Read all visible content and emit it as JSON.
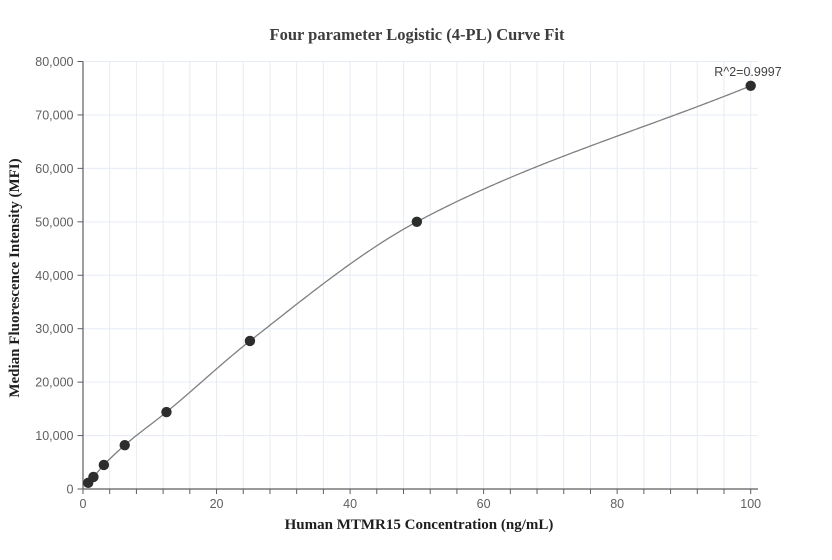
{
  "chart_data": {
    "type": "scatter",
    "title": "Four parameter Logistic (4-PL) Curve Fit",
    "xlabel": "Human MTMR15 Concentration (ng/mL)",
    "ylabel": "Median Fluorescence Intensity (MFI)",
    "annotation": "R^2=0.9997",
    "series": [
      {
        "name": "standard-curve-points",
        "x": [
          0.781,
          1.563,
          3.125,
          6.25,
          12.5,
          25,
          50,
          100
        ],
        "y": [
          1150,
          2250,
          4500,
          8200,
          14400,
          27700,
          50000,
          75450
        ]
      }
    ],
    "fit": {
      "kind": "4-PL logistic curve through points",
      "r_squared": 0.9997,
      "curve_lead_in": {
        "x": 0.2,
        "y": 500
      }
    },
    "xlim": [
      0,
      100
    ],
    "ylim": [
      0,
      80000
    ],
    "x_ticks": {
      "values": [
        0,
        20,
        40,
        60,
        80,
        100
      ],
      "labels": [
        "0",
        "20",
        "40",
        "60",
        "80",
        "100"
      ]
    },
    "x_minor_tick_step": 4,
    "y_ticks": {
      "values": [
        0,
        10000,
        20000,
        30000,
        40000,
        50000,
        60000,
        70000,
        80000
      ],
      "labels": [
        "0",
        "10,000",
        "20,000",
        "30,000",
        "40,000",
        "50,000",
        "60,000",
        "70,000",
        "80,000"
      ]
    },
    "grid": {
      "vertical_step": 4,
      "horizontal_step": 10000,
      "visible": true
    },
    "legend": {
      "visible": false
    },
    "colors": {
      "background": "#ffffff",
      "grid": "#e6ecf5",
      "axis_line": "#5e5e5e",
      "tick": "#5e5e5e",
      "tick_label": "#5f5f5f",
      "title": "#3d3d3d",
      "axis_title": "#1f1f1f",
      "curve": "#7f7f7f",
      "marker": "#2d2d2d",
      "annotation": "#444444"
    }
  }
}
